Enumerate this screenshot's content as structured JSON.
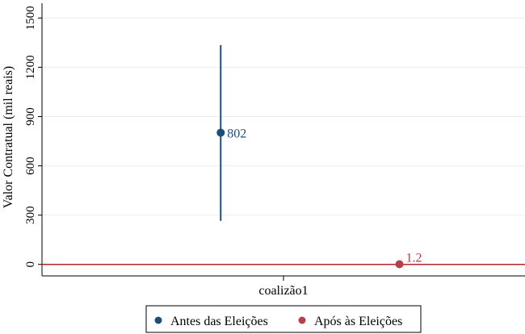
{
  "chart_data": {
    "type": "scatter",
    "ylabel": "Valor Contratual (mil reais)",
    "xlabel": "coalizão1",
    "ylim": [
      -70,
      1590
    ],
    "yticks": [
      0,
      300,
      600,
      900,
      1200,
      1500
    ],
    "grid": true,
    "legend_position": "bottom",
    "reference_line": {
      "y": 0,
      "color": "#b5262b"
    },
    "series": [
      {
        "name": "Antes das Eleições",
        "color": "#1a4f7d",
        "x": 0.37,
        "value": 802,
        "label": "802",
        "ci": [
          265,
          1335
        ]
      },
      {
        "name": "Após às Eleições",
        "color": "#b2414a",
        "x": 0.74,
        "value": 1.2,
        "label": "1.2",
        "ci": null
      }
    ]
  }
}
